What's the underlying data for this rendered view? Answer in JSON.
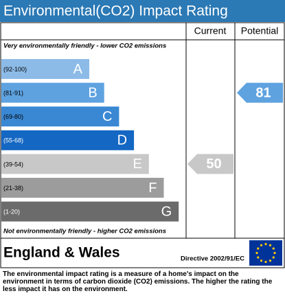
{
  "title": "Environmental(CO2) Impact Rating",
  "columns": {
    "current": "Current",
    "potential": "Potential"
  },
  "top_note": "Very environmentally friendly - lower CO2 emissions",
  "bottom_note": "Not environmentally friendly - higher CO2 emissions",
  "bands": [
    {
      "range": "(92-100)",
      "letter": "A",
      "color": "#8cbbe8"
    },
    {
      "range": "(81-91)",
      "letter": "B",
      "color": "#5ea2e0"
    },
    {
      "range": "(69-80)",
      "letter": "C",
      "color": "#3a88d4"
    },
    {
      "range": "(55-68)",
      "letter": "D",
      "color": "#1467c3"
    },
    {
      "range": "(39-54)",
      "letter": "E",
      "color": "#c8c8c8"
    },
    {
      "range": "(21-38)",
      "letter": "F",
      "color": "#9c9c9c"
    },
    {
      "range": "(1-20)",
      "letter": "G",
      "color": "#6b6b6b"
    }
  ],
  "current": 50,
  "potential": 81,
  "region": "England & Wales",
  "directive": "Directive 2002/91/EC",
  "description": "The environmental impact rating is a measure of a home's impact on the environment in terms of carbon dioxide (CO2) emissions. The higher the rating the less impact it has on the environment."
}
